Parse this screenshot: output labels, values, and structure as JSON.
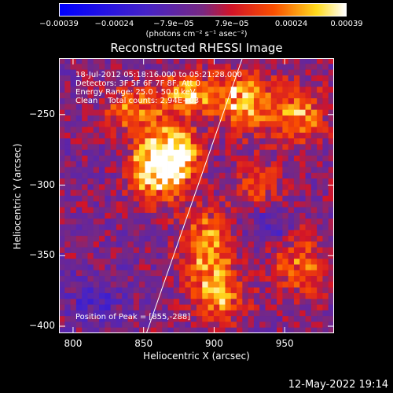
{
  "chart_data": {
    "type": "heatmap",
    "title": "Reconstructed RHESSI Image",
    "xlabel": "Heliocentric X (arcsec)",
    "ylabel": "Heliocentric Y (arcsec)",
    "xlim": [
      790,
      985
    ],
    "ylim": [
      -405,
      -210
    ],
    "x_ticks": [
      800,
      850,
      900,
      950
    ],
    "y_ticks": [
      -400,
      -350,
      -300,
      -250
    ],
    "colorbar": {
      "range": [
        -0.00039,
        0.00039
      ],
      "tick_labels": [
        "-0.00039",
        "-0.00024",
        "-7.9e-05",
        "7.9e-05",
        "0.00024",
        "0.00039"
      ],
      "tick_values": [
        -0.00039,
        -0.00024,
        -7.9e-05,
        7.9e-05,
        0.00024,
        0.00039
      ],
      "units": "(photons cm⁻² s⁻¹ asec⁻²)"
    },
    "annotations": {
      "time_range": "18-Jul-2012 05:18:16.000 to 05:21:28.000",
      "detectors": "Detectors: 3F 5F 6F 7F 8F, Att 0",
      "energy": "Energy Range: 25.0 - 50.0 keV",
      "method": "Clean    Total counts: 2.94E+03",
      "peak": "Position of Peak = [855,-288]"
    },
    "limb_line": {
      "x": [
        852,
        920
      ],
      "y": [
        -405,
        -210
      ]
    },
    "emission_regions": [
      {
        "x": 858,
        "y": -285,
        "amplitude": 0.00039,
        "sx": 12,
        "sy": 18
      },
      {
        "x": 875,
        "y": -280,
        "amplitude": 0.00035,
        "sx": 10,
        "sy": 14
      },
      {
        "x": 895,
        "y": -345,
        "amplitude": 0.0003,
        "sx": 12,
        "sy": 20
      },
      {
        "x": 880,
        "y": -235,
        "amplitude": 0.00028,
        "sx": 14,
        "sy": 10
      },
      {
        "x": 920,
        "y": -240,
        "amplitude": 0.0003,
        "sx": 16,
        "sy": 14
      },
      {
        "x": 960,
        "y": -250,
        "amplitude": 0.00025,
        "sx": 14,
        "sy": 14
      },
      {
        "x": 840,
        "y": -245,
        "amplitude": 0.00022,
        "sx": 12,
        "sy": 10
      },
      {
        "x": 905,
        "y": -380,
        "amplitude": 0.00025,
        "sx": 12,
        "sy": 12
      },
      {
        "x": 960,
        "y": -355,
        "amplitude": 0.0002,
        "sx": 14,
        "sy": 16
      },
      {
        "x": 930,
        "y": -300,
        "amplitude": 0.00015,
        "sx": 12,
        "sy": 12
      },
      {
        "x": 815,
        "y": -380,
        "amplitude": -0.00012,
        "sx": 14,
        "sy": 12
      },
      {
        "x": 940,
        "y": -330,
        "amplitude": -0.00012,
        "sx": 12,
        "sy": 10
      }
    ]
  },
  "timestamp": "12-May-2022 19:14"
}
